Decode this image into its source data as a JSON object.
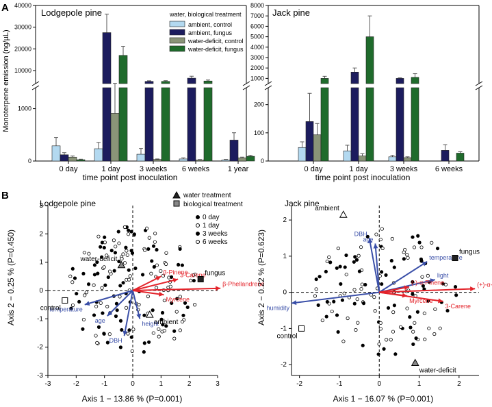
{
  "panel_letters": [
    "A",
    "B"
  ],
  "chart_data": [
    {
      "type": "bar",
      "panel": "A",
      "title": "Lodgepole pine",
      "ylabel": "Monoterpene emission (ng/µL)",
      "xlabel": "time point post inoculation",
      "categories": [
        "0 day",
        "1 day",
        "3 weeks",
        "6 weeks",
        "1 year"
      ],
      "legend_title": "water, biological treatment",
      "y_ticks_lower": [
        "0",
        "1000"
      ],
      "y_ticks_upper": [
        "10000",
        "20000",
        "30000",
        "40000"
      ],
      "axis_break": [
        1400,
        4000
      ],
      "series": [
        {
          "name": "ambient, control",
          "color": "#b3d9f0",
          "values": [
            290,
            235,
            130,
            40,
            20
          ],
          "errors": [
            160,
            120,
            110,
            20,
            10
          ]
        },
        {
          "name": "ambient, fungus",
          "color": "#1c1c5e",
          "values": [
            120,
            27500,
            5000,
            6500,
            400
          ],
          "errors": [
            40,
            8500,
            300,
            900,
            140
          ]
        },
        {
          "name": "water-deficit, control",
          "color": "#8a9478",
          "values": [
            75,
            910,
            30,
            20,
            60
          ],
          "errors": [
            20,
            3200,
            10,
            8,
            15
          ]
        },
        {
          "name": "water-deficit, fungus",
          "color": "#1f6b2c",
          "values": [
            25,
            17000,
            5000,
            5200,
            90
          ],
          "errors": [
            10,
            4200,
            350,
            450,
            20
          ]
        }
      ]
    },
    {
      "type": "bar",
      "panel": "A",
      "title": "Jack pine",
      "xlabel": "time point post inoculation",
      "categories": [
        "0 day",
        "1 day",
        "3 weeks",
        "6 weeks"
      ],
      "y_ticks_lower": [
        "0",
        "100",
        "200"
      ],
      "y_ticks_upper": [
        "1000",
        "2000",
        "3000",
        "4000",
        "5000",
        "6000",
        "7000",
        "8000"
      ],
      "axis_break": [
        260,
        500
      ],
      "series": [
        {
          "name": "ambient, control",
          "color": "#b3d9f0",
          "values": [
            48,
            36,
            15,
            0
          ],
          "errors": [
            20,
            20,
            5,
            0
          ]
        },
        {
          "name": "ambient, fungus",
          "color": "#1c1c5e",
          "values": [
            140,
            1600,
            1000,
            38
          ],
          "errors": [
            100,
            400,
            50,
            20
          ]
        },
        {
          "name": "water-deficit, control",
          "color": "#8a9478",
          "values": [
            93,
            18,
            12,
            0
          ],
          "errors": [
            40,
            8,
            3,
            0
          ]
        },
        {
          "name": "water-deficit, fungus",
          "color": "#1f6b2c",
          "values": [
            1000,
            5000,
            1100,
            28
          ],
          "errors": [
            200,
            2000,
            350,
            5
          ]
        }
      ]
    },
    {
      "type": "scatter",
      "panel": "B",
      "title": "Lodgepole pine",
      "xlabel": "Axis 1 − 13.86 % (P=0.001)",
      "ylabel": "Axis 2 − 0.25 % (P=0.450)",
      "xlim": [
        -3,
        3
      ],
      "ylim": [
        -3,
        3
      ],
      "x_ticks": [
        "-3",
        "-2",
        "-1",
        "0",
        "1",
        "2",
        "3"
      ],
      "y_ticks": [
        "3",
        "2",
        "1",
        "0",
        "-1",
        "-2",
        "-3"
      ],
      "treatment_legend": [
        "water treatment",
        "biological treatment"
      ],
      "time_legend": [
        "0 day",
        "1 day",
        "3 weeks",
        "6 weeks"
      ],
      "centroids": [
        {
          "label": "water-deficit",
          "type": "water",
          "x": -0.4,
          "y": 0.9
        },
        {
          "label": "ambient",
          "type": "water",
          "x": 0.6,
          "y": -0.85
        },
        {
          "label": "fungus",
          "type": "bio",
          "x": 2.4,
          "y": 0.4
        },
        {
          "label": "control",
          "type": "bio",
          "x": -2.4,
          "y": -0.35
        }
      ],
      "vectors_blue": [
        {
          "label": "temperature",
          "x": -1.7,
          "y": -0.5
        },
        {
          "label": "age",
          "x": -0.9,
          "y": -0.9
        },
        {
          "label": "DBH",
          "x": -0.3,
          "y": -1.6
        },
        {
          "label": "height",
          "x": 0.25,
          "y": -1.0
        }
      ],
      "vectors_red": [
        {
          "label": "3-Carene",
          "x": 1.6,
          "y": 0.4
        },
        {
          "label": "β-Phellandrene",
          "x": 3.1,
          "y": 0.08
        },
        {
          "label": "β-Pinene",
          "x": 1.0,
          "y": 0.5
        },
        {
          "label": "Myrcene",
          "x": 1.1,
          "y": -0.15
        }
      ]
    },
    {
      "type": "scatter",
      "panel": "B",
      "title": "Jack pine",
      "xlabel": "Axis 1 − 16.07 % (P=0.001)",
      "ylabel": "Axis 2 − 0.22 % (P=0.623)",
      "xlim": [
        -2.2,
        2.5
      ],
      "ylim": [
        -2.3,
        2.4
      ],
      "x_ticks": [
        "-2",
        "-1",
        "0",
        "1",
        "2"
      ],
      "y_ticks": [
        "2",
        "1",
        "0",
        "-1",
        "-2"
      ],
      "centroids": [
        {
          "label": "ambient",
          "type": "water",
          "x": -0.9,
          "y": 2.15
        },
        {
          "label": "water-deficit",
          "type": "water",
          "x": 0.9,
          "y": -1.95
        },
        {
          "label": "fungus",
          "type": "bio",
          "x": 1.9,
          "y": 0.95
        },
        {
          "label": "control",
          "type": "bio",
          "x": -1.95,
          "y": -1.0
        }
      ],
      "vectors_blue": [
        {
          "label": "humidity",
          "x": -2.2,
          "y": -0.3
        },
        {
          "label": "temperature",
          "x": 1.2,
          "y": 0.85
        },
        {
          "label": "light",
          "x": 1.4,
          "y": 0.35
        },
        {
          "label": "DBH",
          "x": -0.25,
          "y": 1.5
        },
        {
          "label": "age",
          "x": -0.1,
          "y": 1.35
        }
      ],
      "vectors_red": [
        {
          "label": "(+)-α-Pinene",
          "x": 2.4,
          "y": 0.1
        },
        {
          "label": "3-Carene",
          "x": 1.6,
          "y": -0.25
        },
        {
          "label": "(-)-α-Pinene",
          "x": 0.75,
          "y": 0.15
        },
        {
          "label": "Myrcene",
          "x": 0.7,
          "y": -0.1
        }
      ]
    }
  ]
}
